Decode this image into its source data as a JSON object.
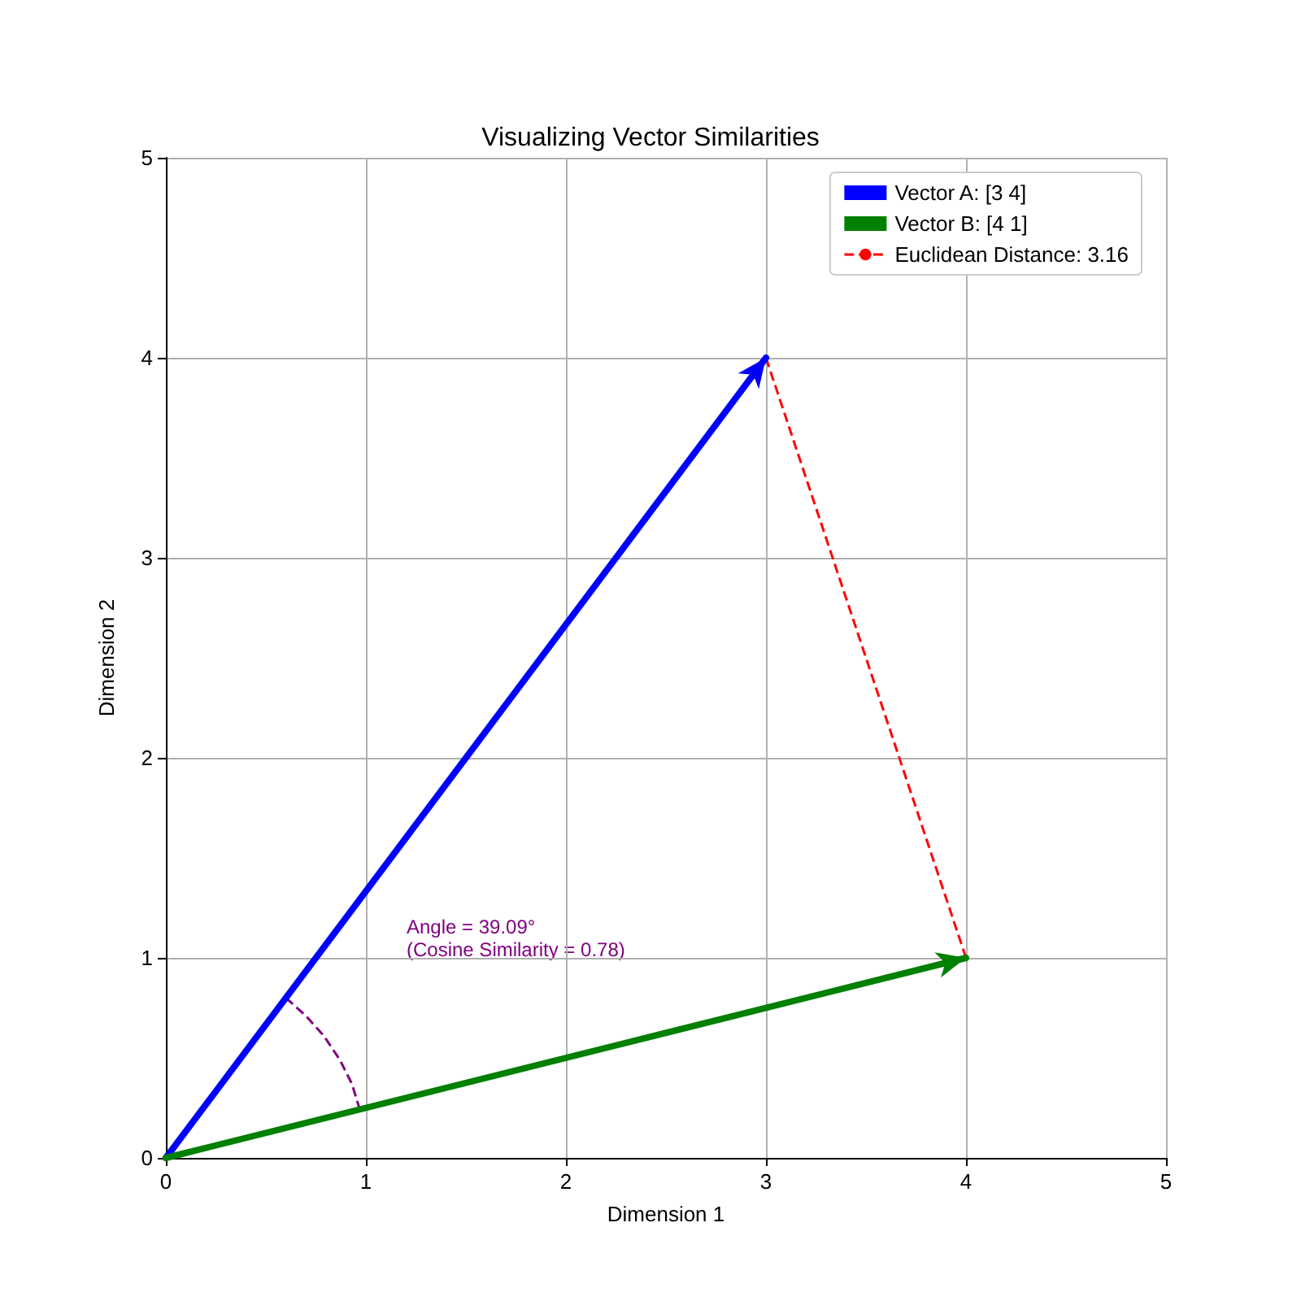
{
  "chart_data": {
    "type": "line",
    "title": "Visualizing Vector Similarities",
    "xlabel": "Dimension 1",
    "ylabel": "Dimension 2",
    "xlim": [
      0,
      5
    ],
    "ylim": [
      0,
      5
    ],
    "xticks": [
      0,
      1,
      2,
      3,
      4,
      5
    ],
    "yticks": [
      0,
      1,
      2,
      3,
      4,
      5
    ],
    "grid": true,
    "legend": "top right",
    "series": [
      {
        "name": "Vector A: [3 4]",
        "color": "#0000ff",
        "x": [
          0,
          3
        ],
        "values": [
          0,
          4
        ]
      },
      {
        "name": "Vector B: [4 1]",
        "color": "#008000",
        "x": [
          0,
          4
        ],
        "values": [
          0,
          1
        ]
      },
      {
        "name": "Euclidean Distance: 3.16",
        "color": "#ff0000",
        "x": [
          3,
          4
        ],
        "values": [
          4,
          1
        ],
        "line_style": "dashed"
      },
      {
        "color": "#800080",
        "x": [
          0.97,
          0.93,
          0.87,
          0.79,
          0.7,
          0.6
        ],
        "values": [
          0.24,
          0.37,
          0.49,
          0.61,
          0.71,
          0.8
        ],
        "line_style": "dashed"
      }
    ],
    "annotations": [
      "Angle = 39.09°\n(Cosine Similarity = 0.78)"
    ]
  }
}
